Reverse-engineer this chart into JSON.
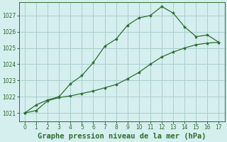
{
  "line1_x": [
    0,
    1,
    2,
    3,
    4,
    5,
    6,
    7,
    8,
    9,
    10,
    11,
    12,
    13,
    14,
    15,
    16,
    17
  ],
  "line1_y": [
    1021.0,
    1021.5,
    1021.8,
    1022.0,
    1022.8,
    1023.3,
    1024.1,
    1025.1,
    1025.55,
    1026.4,
    1026.85,
    1027.0,
    1027.55,
    1027.15,
    1026.3,
    1025.7,
    1025.8,
    1025.35
  ],
  "line2_x": [
    0,
    1,
    2,
    3,
    4,
    5,
    6,
    7,
    8,
    9,
    10,
    11,
    12,
    13,
    14,
    15,
    16,
    17
  ],
  "line2_y": [
    1021.0,
    1021.15,
    1021.75,
    1021.95,
    1022.05,
    1022.2,
    1022.35,
    1022.55,
    1022.75,
    1023.1,
    1023.5,
    1024.0,
    1024.45,
    1024.75,
    1025.0,
    1025.2,
    1025.3,
    1025.35
  ],
  "line_color": "#2d6e2d",
  "marker": "*",
  "background_color": "#d5eeee",
  "grid_color": "#aacece",
  "xlabel": "Graphe pression niveau de la mer (hPa)",
  "ylim": [
    1020.5,
    1027.8
  ],
  "xlim": [
    -0.5,
    17.5
  ],
  "yticks": [
    1021,
    1022,
    1023,
    1024,
    1025,
    1026,
    1027
  ],
  "xticks": [
    0,
    1,
    2,
    3,
    4,
    5,
    6,
    7,
    8,
    9,
    10,
    11,
    12,
    13,
    14,
    15,
    16,
    17
  ],
  "tick_fontsize": 5.5,
  "xlabel_fontsize": 7.5
}
